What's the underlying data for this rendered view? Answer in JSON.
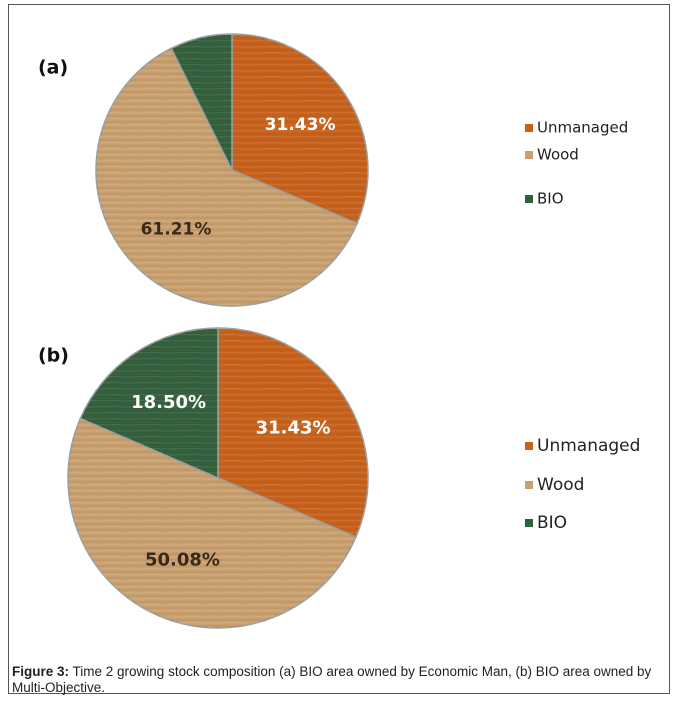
{
  "chart_data": [
    {
      "type": "pie",
      "title": "(a)",
      "categories": [
        "Unmanaged",
        "Wood",
        "BIO"
      ],
      "values": [
        31.43,
        61.21,
        7.36
      ],
      "value_labels": [
        "31.43%",
        "61.21%",
        null
      ],
      "colors": [
        "#c8601a",
        "#c9a070",
        "#2f5f3c"
      ]
    },
    {
      "type": "pie",
      "title": "(b)",
      "categories": [
        "Unmanaged",
        "Wood",
        "BIO"
      ],
      "values": [
        31.43,
        50.08,
        18.5
      ],
      "value_labels": [
        "31.43%",
        "50.08%",
        "18.50%"
      ],
      "colors": [
        "#c8601a",
        "#c9a070",
        "#2f5f3c"
      ]
    }
  ],
  "caption": {
    "label": "Figure 3:",
    "text": "Time 2 growing stock composition (a) BIO area owned by Economic Man, (b) BIO area owned by Multi-Objective."
  }
}
